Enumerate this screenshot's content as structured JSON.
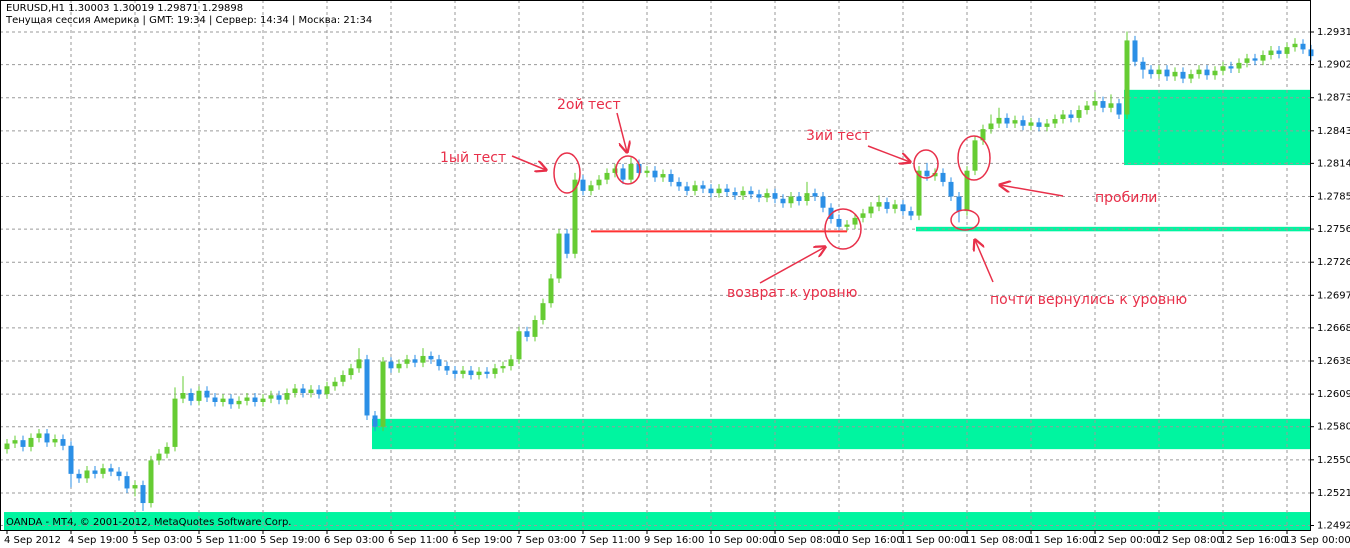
{
  "chart_data": {
    "type": "candlestick",
    "title": "EURUSD,H1  1.30003 1.30019 1.29871 1.29898",
    "subtitle": "Тенущая сессия  Америка     |  GMT: 19:34 | Сервер: 14:34 | Москва: 21:34",
    "footer": "OANDA - MT4, © 2001-2012, MetaQuotes Software Corp.",
    "up_color": "#66cc33",
    "down_color": "#2b8fe6",
    "grid": true,
    "ylim": [
      1.2488,
      1.296
    ],
    "yticks": [
      1.29315,
      1.29025,
      {
        "value": 1.2873,
        "label": "1.28730"
      },
      1.28435,
      1.28145,
      {
        "value": 1.2785,
        "label": "1.27850"
      },
      {
        "value": 1.2756,
        "label": "1.27560"
      },
      1.27265,
      {
        "value": 1.2697,
        "label": "1.26970"
      },
      {
        "value": 1.2668,
        "label": "1.26680"
      },
      1.26385,
      {
        "value": 1.2609,
        "label": "1.26090"
      },
      {
        "value": 1.258,
        "label": "1.25800"
      },
      1.25505,
      1.2521,
      {
        "value": 1.2492,
        "label": "1.24920"
      }
    ],
    "categories": [
      "4 Sep 2012",
      null,
      null,
      null,
      null,
      null,
      null,
      null,
      "4 Sep 19:00",
      null,
      null,
      null,
      null,
      null,
      null,
      null,
      "5 Sep 03:00",
      null,
      null,
      null,
      null,
      null,
      null,
      null,
      "5 Sep 11:00",
      null,
      null,
      null,
      null,
      null,
      null,
      null,
      "5 Sep 19:00",
      null,
      null,
      null,
      null,
      null,
      null,
      null,
      "6 Sep 03:00",
      null,
      null,
      null,
      null,
      null,
      null,
      null,
      "6 Sep 11:00",
      null,
      null,
      null,
      null,
      null,
      null,
      null,
      "6 Sep 19:00",
      null,
      null,
      null,
      null,
      null,
      null,
      null,
      "7 Sep 03:00",
      null,
      null,
      null,
      null,
      null,
      null,
      null,
      "7 Sep 11:00",
      null,
      null,
      null,
      null,
      null,
      null,
      null,
      "9 Sep 16:00",
      null,
      null,
      null,
      null,
      null,
      null,
      null,
      "10 Sep 00:00",
      null,
      null,
      null,
      null,
      null,
      null,
      null,
      "10 Sep 08:00",
      null,
      null,
      null,
      null,
      null,
      null,
      null,
      "10 Sep 16:00",
      null,
      null,
      null,
      null,
      null,
      null,
      null,
      "11 Sep 00:00",
      null,
      null,
      null,
      null,
      null,
      null,
      null,
      "11 Sep 08:00",
      null,
      null,
      null,
      null,
      null,
      null,
      null,
      "11 Sep 16:00",
      null,
      null,
      null,
      null,
      null,
      null,
      null,
      "12 Sep 00:00",
      null,
      null,
      null,
      null,
      null,
      null,
      null,
      "12 Sep 08:00",
      null,
      null,
      null,
      null,
      null,
      null,
      null,
      "12 Sep 16:00",
      null,
      null,
      null,
      null,
      null,
      null,
      null,
      "13 Sep 00:00",
      null,
      null,
      null
    ],
    "open": [
      1.256,
      1.2565,
      1.2568,
      1.2562,
      1.257,
      1.2574,
      1.2566,
      1.2569,
      1.2563,
      1.2538,
      1.2534,
      1.2541,
      1.2538,
      1.2543,
      1.254,
      1.2536,
      1.2525,
      1.2528,
      1.2512,
      1.255,
      1.2556,
      1.2562,
      1.2605,
      1.261,
      1.2603,
      1.2612,
      1.2606,
      1.2602,
      1.2605,
      1.26,
      1.2603,
      1.2606,
      1.2602,
      1.2605,
      1.2608,
      1.2604,
      1.261,
      1.2614,
      1.261,
      1.2613,
      1.2609,
      1.2616,
      1.262,
      1.2626,
      1.2632,
      1.264,
      1.259,
      1.258,
      1.2638,
      1.2632,
      1.2636,
      1.264,
      1.2637,
      1.2643,
      1.264,
      1.2634,
      1.263,
      1.2627,
      1.263,
      1.2626,
      1.2629,
      1.2627,
      1.2632,
      1.2634,
      1.264,
      1.2665,
      1.266,
      1.2675,
      1.269,
      1.2712,
      1.2752,
      1.2734,
      1.28,
      1.279,
      1.2795,
      1.28,
      1.2806,
      1.281,
      1.28,
      1.2814,
      1.2806,
      1.2808,
      1.2802,
      1.2805,
      1.2798,
      1.2794,
      1.279,
      1.2795,
      1.2792,
      1.2788,
      1.2792,
      1.2789,
      1.2786,
      1.279,
      1.2787,
      1.2784,
      1.2788,
      1.2783,
      1.2779,
      1.2785,
      1.2781,
      1.2788,
      1.2785,
      1.2775,
      1.2765,
      1.2758,
      1.276,
      1.2766,
      1.277,
      1.2776,
      1.278,
      1.2774,
      1.2778,
      1.2772,
      1.2768,
      1.2808,
      1.2803,
      1.2806,
      1.2798,
      1.2785,
      1.2772,
      1.2808,
      1.2835,
      1.2845,
      1.285,
      1.2855,
      1.285,
      1.2853,
      1.2848,
      1.2851,
      1.2847,
      1.285,
      1.2854,
      1.2858,
      1.2855,
      1.2862,
      1.2866,
      1.287,
      1.2864,
      1.2868,
      1.2858,
      1.2924,
      1.2905,
      1.2898,
      1.2894,
      1.2898,
      1.2892,
      1.2896,
      1.289,
      1.2894,
      1.2898,
      1.2893,
      1.2897,
      1.2901,
      1.2899,
      1.2904,
      1.2908,
      1.2906,
      1.2911,
      1.2915,
      1.2912,
      1.2918,
      1.2921,
      1.2916
    ],
    "high": [
      1.2569,
      1.2572,
      1.2572,
      1.2574,
      1.2578,
      1.2578,
      1.2573,
      1.2573,
      1.2567,
      1.2542,
      1.2545,
      1.2545,
      1.2547,
      1.2547,
      1.2544,
      1.254,
      1.2532,
      1.2532,
      1.2554,
      1.256,
      1.2566,
      1.2615,
      1.2625,
      1.2614,
      1.2616,
      1.2616,
      1.261,
      1.2609,
      1.2609,
      1.2607,
      1.261,
      1.261,
      1.2609,
      1.2612,
      1.2612,
      1.2614,
      1.2618,
      1.2618,
      1.2617,
      1.2617,
      1.262,
      1.2624,
      1.263,
      1.2636,
      1.265,
      1.2644,
      1.2594,
      1.2642,
      1.2642,
      1.264,
      1.2644,
      1.2644,
      1.265,
      1.2647,
      1.2644,
      1.2638,
      1.2634,
      1.2634,
      1.2634,
      1.2633,
      1.2633,
      1.2636,
      1.2638,
      1.2644,
      1.2669,
      1.2669,
      1.2679,
      1.2694,
      1.2716,
      1.2756,
      1.2756,
      1.2806,
      1.2804,
      1.2799,
      1.2804,
      1.281,
      1.2814,
      1.2814,
      1.282,
      1.2818,
      1.2812,
      1.2812,
      1.2809,
      1.2809,
      1.2802,
      1.2798,
      1.2799,
      1.2799,
      1.2796,
      1.2796,
      1.2796,
      1.2793,
      1.2794,
      1.2794,
      1.2791,
      1.2792,
      1.2792,
      1.2787,
      1.2789,
      1.2789,
      1.2798,
      1.2792,
      1.2789,
      1.2779,
      1.2769,
      1.2764,
      1.277,
      1.2774,
      1.278,
      1.2786,
      1.2784,
      1.2782,
      1.2782,
      1.2776,
      1.2812,
      1.2815,
      1.281,
      1.281,
      1.2802,
      1.2789,
      1.2812,
      1.2839,
      1.2849,
      1.2858,
      1.2864,
      1.2859,
      1.2857,
      1.2857,
      1.2855,
      1.2855,
      1.2854,
      1.2858,
      1.2862,
      1.2862,
      1.2866,
      1.287,
      1.2878,
      1.2874,
      1.2876,
      1.2872,
      1.2932,
      1.2928,
      1.2909,
      1.2902,
      1.2902,
      1.2902,
      1.29,
      1.29,
      1.2898,
      1.2902,
      1.2902,
      1.2901,
      1.2905,
      1.2905,
      1.2908,
      1.2912,
      1.2912,
      1.2915,
      1.2919,
      1.2919,
      1.2922,
      1.2926,
      1.2925,
      1.292
    ],
    "low": [
      1.2556,
      1.2561,
      1.2558,
      1.2558,
      1.2566,
      1.2562,
      1.2562,
      1.2559,
      1.2526,
      1.253,
      1.253,
      1.2534,
      1.2534,
      1.2536,
      1.2532,
      1.2521,
      1.2518,
      1.2505,
      1.2508,
      1.2546,
      1.2552,
      1.2558,
      1.2601,
      1.2599,
      1.2599,
      1.2602,
      1.2598,
      1.2598,
      1.2596,
      1.2596,
      1.2599,
      1.2598,
      1.2598,
      1.2601,
      1.26,
      1.26,
      1.2606,
      1.2606,
      1.2606,
      1.2605,
      1.2605,
      1.2612,
      1.2616,
      1.2622,
      1.2628,
      1.2586,
      1.2576,
      1.2576,
      1.2628,
      1.2628,
      1.2632,
      1.2633,
      1.2633,
      1.2636,
      1.263,
      1.2626,
      1.2623,
      1.2623,
      1.2622,
      1.2622,
      1.2623,
      1.2623,
      1.2628,
      1.263,
      1.2636,
      1.2656,
      1.2656,
      1.2671,
      1.2686,
      1.2708,
      1.273,
      1.273,
      1.2786,
      1.2786,
      1.2791,
      1.2796,
      1.2802,
      1.2796,
      1.2796,
      1.2802,
      1.2802,
      1.2798,
      1.2798,
      1.2794,
      1.279,
      1.2786,
      1.2786,
      1.2788,
      1.2784,
      1.2784,
      1.2785,
      1.2782,
      1.2782,
      1.2783,
      1.278,
      1.278,
      1.2779,
      1.2775,
      1.2775,
      1.2777,
      1.2777,
      1.2781,
      1.2771,
      1.2761,
      1.2754,
      1.2754,
      1.2756,
      1.2762,
      1.2766,
      1.2772,
      1.277,
      1.277,
      1.2768,
      1.2764,
      1.2764,
      1.2799,
      1.2799,
      1.2794,
      1.2781,
      1.2762,
      1.2768,
      1.2804,
      1.2831,
      1.2841,
      1.2846,
      1.2846,
      1.2846,
      1.2844,
      1.2844,
      1.2843,
      1.2843,
      1.2846,
      1.285,
      1.2851,
      1.2851,
      1.2858,
      1.2862,
      1.286,
      1.286,
      1.2854,
      1.2854,
      1.2901,
      1.289,
      1.289,
      1.289,
      1.2888,
      1.2888,
      1.2886,
      1.2886,
      1.289,
      1.2889,
      1.2889,
      1.2893,
      1.2895,
      1.2895,
      1.29,
      1.2902,
      1.2902,
      1.2907,
      1.2908,
      1.2908,
      1.2914,
      1.2912,
      1.2906
    ],
    "close": [
      1.2565,
      1.2568,
      1.2562,
      1.257,
      1.2574,
      1.2566,
      1.2569,
      1.2563,
      1.2538,
      1.2534,
      1.2541,
      1.2538,
      1.2543,
      1.254,
      1.2536,
      1.2525,
      1.2528,
      1.2512,
      1.255,
      1.2556,
      1.2562,
      1.2605,
      1.261,
      1.2603,
      1.2612,
      1.2606,
      1.2602,
      1.2605,
      1.26,
      1.2603,
      1.2606,
      1.2602,
      1.2605,
      1.2608,
      1.2604,
      1.261,
      1.2614,
      1.261,
      1.2613,
      1.2609,
      1.2616,
      1.262,
      1.2626,
      1.2632,
      1.264,
      1.259,
      1.258,
      1.2638,
      1.2632,
      1.2636,
      1.264,
      1.2637,
      1.2643,
      1.264,
      1.2634,
      1.263,
      1.2627,
      1.263,
      1.2626,
      1.2629,
      1.2627,
      1.2632,
      1.2634,
      1.264,
      1.2665,
      1.266,
      1.2675,
      1.269,
      1.2712,
      1.2752,
      1.2734,
      1.28,
      1.279,
      1.2795,
      1.28,
      1.2806,
      1.281,
      1.28,
      1.2814,
      1.2806,
      1.2808,
      1.2802,
      1.2805,
      1.2798,
      1.2794,
      1.279,
      1.2795,
      1.2792,
      1.2788,
      1.2792,
      1.2789,
      1.2786,
      1.279,
      1.2787,
      1.2784,
      1.2788,
      1.2783,
      1.2779,
      1.2785,
      1.2781,
      1.2788,
      1.2785,
      1.2775,
      1.2765,
      1.2758,
      1.276,
      1.2766,
      1.277,
      1.2776,
      1.278,
      1.2774,
      1.2778,
      1.2772,
      1.2768,
      1.2808,
      1.2803,
      1.2806,
      1.2798,
      1.2785,
      1.2772,
      1.2808,
      1.2835,
      1.2845,
      1.285,
      1.2855,
      1.285,
      1.2853,
      1.2848,
      1.2851,
      1.2847,
      1.285,
      1.2854,
      1.2858,
      1.2855,
      1.2862,
      1.2866,
      1.287,
      1.2864,
      1.2868,
      1.2858,
      1.2924,
      1.2905,
      1.2898,
      1.2894,
      1.2898,
      1.2892,
      1.2896,
      1.289,
      1.2894,
      1.2898,
      1.2893,
      1.2897,
      1.2901,
      1.2899,
      1.2904,
      1.2908,
      1.2906,
      1.2911,
      1.2915,
      1.2912,
      1.2918,
      1.2921,
      1.2916,
      1.291
    ],
    "zones": [
      {
        "low": 1.256,
        "high": 1.2587,
        "start": 46,
        "color": "#00f5a0"
      },
      {
        "low": 1.2813,
        "high": 1.288,
        "start": 140,
        "color": "#00f5a0"
      },
      {
        "low": 1.2754,
        "high": 1.2758,
        "start": 114,
        "color": "#00f5a0"
      },
      {
        "low": 1.2488,
        "high": 1.2504,
        "start": 0,
        "color": "#00f5a0"
      }
    ],
    "lines": [
      {
        "value": 1.2754,
        "start": 73,
        "end": 105,
        "color": "#ff3333"
      }
    ],
    "annotations": [
      "1ый тест",
      "2ой тест",
      "3ий тест",
      "пробили",
      "возврат к уровню",
      "почти вернулись к уровню"
    ],
    "annotation_color": "#e8304a"
  }
}
